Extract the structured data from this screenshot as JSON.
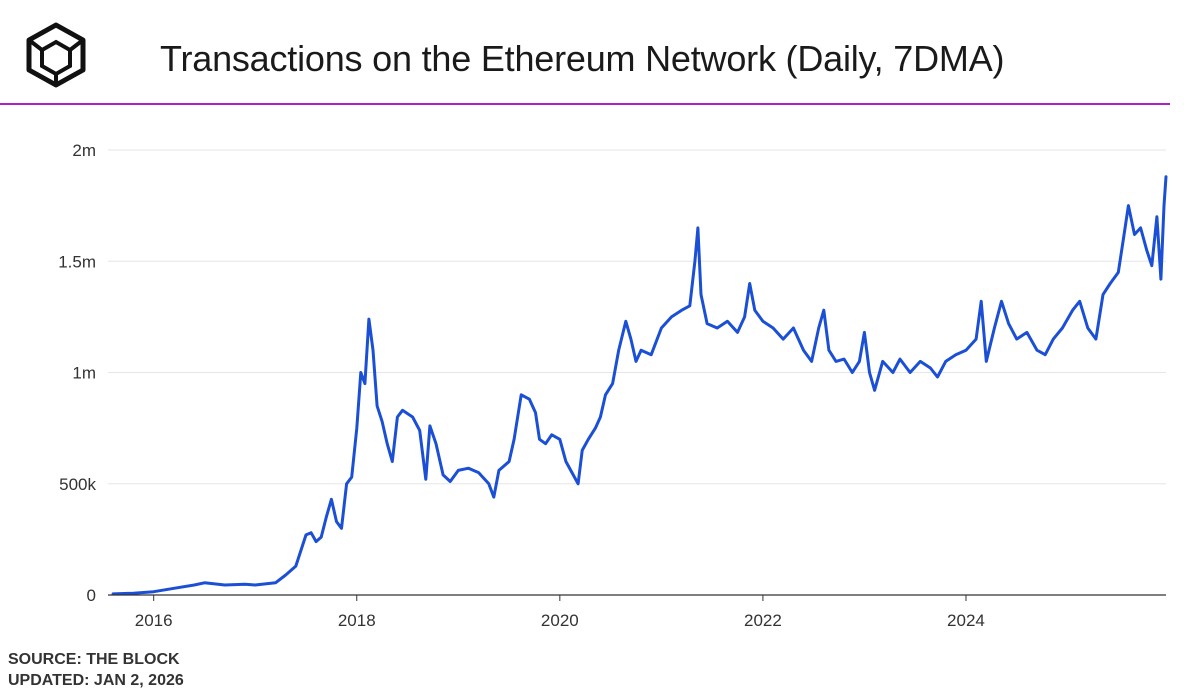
{
  "colors": {
    "line": "#1a4fd6",
    "accent": "#b01fc6",
    "grid": "#e6e6e6",
    "axis": "#333333"
  },
  "logo_icon": "the-block-cube-icon",
  "footer": {
    "source": "SOURCE: THE BLOCK",
    "updated": "UPDATED: JAN 2, 2026"
  },
  "chart_data": {
    "type": "line",
    "title": "Transactions on the Ethereum Network (Daily, 7DMA)",
    "xlabel": "",
    "ylabel": "",
    "xlim": [
      2015.55,
      2025.97
    ],
    "ylim": [
      0,
      2000000
    ],
    "x_ticks": [
      2016,
      2018,
      2020,
      2022,
      2024
    ],
    "x_tick_labels": [
      "2016",
      "2018",
      "2020",
      "2022",
      "2024"
    ],
    "y_ticks": [
      0,
      500000,
      1000000,
      1500000,
      2000000
    ],
    "y_tick_labels": [
      "0",
      "500k",
      "1m",
      "1.5m",
      "2m"
    ],
    "grid": true,
    "series": [
      {
        "name": "Transactions (7DMA)",
        "points": [
          [
            2015.6,
            5000
          ],
          [
            2015.8,
            8000
          ],
          [
            2016.0,
            15000
          ],
          [
            2016.2,
            30000
          ],
          [
            2016.4,
            45000
          ],
          [
            2016.5,
            55000
          ],
          [
            2016.7,
            45000
          ],
          [
            2016.9,
            48000
          ],
          [
            2017.0,
            45000
          ],
          [
            2017.1,
            50000
          ],
          [
            2017.2,
            55000
          ],
          [
            2017.3,
            90000
          ],
          [
            2017.4,
            130000
          ],
          [
            2017.45,
            200000
          ],
          [
            2017.5,
            270000
          ],
          [
            2017.55,
            280000
          ],
          [
            2017.6,
            240000
          ],
          [
            2017.65,
            260000
          ],
          [
            2017.7,
            350000
          ],
          [
            2017.75,
            430000
          ],
          [
            2017.8,
            330000
          ],
          [
            2017.85,
            300000
          ],
          [
            2017.9,
            500000
          ],
          [
            2017.95,
            530000
          ],
          [
            2018.0,
            750000
          ],
          [
            2018.04,
            1000000
          ],
          [
            2018.08,
            950000
          ],
          [
            2018.12,
            1240000
          ],
          [
            2018.16,
            1100000
          ],
          [
            2018.2,
            850000
          ],
          [
            2018.25,
            780000
          ],
          [
            2018.3,
            680000
          ],
          [
            2018.35,
            600000
          ],
          [
            2018.4,
            800000
          ],
          [
            2018.45,
            830000
          ],
          [
            2018.55,
            800000
          ],
          [
            2018.62,
            740000
          ],
          [
            2018.68,
            520000
          ],
          [
            2018.72,
            760000
          ],
          [
            2018.78,
            680000
          ],
          [
            2018.85,
            540000
          ],
          [
            2018.92,
            510000
          ],
          [
            2019.0,
            560000
          ],
          [
            2019.1,
            570000
          ],
          [
            2019.2,
            550000
          ],
          [
            2019.3,
            500000
          ],
          [
            2019.35,
            440000
          ],
          [
            2019.4,
            560000
          ],
          [
            2019.5,
            600000
          ],
          [
            2019.55,
            700000
          ],
          [
            2019.62,
            900000
          ],
          [
            2019.7,
            880000
          ],
          [
            2019.76,
            820000
          ],
          [
            2019.8,
            700000
          ],
          [
            2019.86,
            680000
          ],
          [
            2019.92,
            720000
          ],
          [
            2020.0,
            700000
          ],
          [
            2020.06,
            600000
          ],
          [
            2020.12,
            550000
          ],
          [
            2020.18,
            500000
          ],
          [
            2020.22,
            650000
          ],
          [
            2020.28,
            700000
          ],
          [
            2020.35,
            750000
          ],
          [
            2020.4,
            800000
          ],
          [
            2020.45,
            900000
          ],
          [
            2020.52,
            950000
          ],
          [
            2020.58,
            1100000
          ],
          [
            2020.65,
            1230000
          ],
          [
            2020.7,
            1150000
          ],
          [
            2020.75,
            1050000
          ],
          [
            2020.8,
            1100000
          ],
          [
            2020.9,
            1080000
          ],
          [
            2021.0,
            1200000
          ],
          [
            2021.1,
            1250000
          ],
          [
            2021.2,
            1280000
          ],
          [
            2021.28,
            1300000
          ],
          [
            2021.33,
            1500000
          ],
          [
            2021.36,
            1650000
          ],
          [
            2021.39,
            1350000
          ],
          [
            2021.45,
            1220000
          ],
          [
            2021.55,
            1200000
          ],
          [
            2021.65,
            1230000
          ],
          [
            2021.75,
            1180000
          ],
          [
            2021.82,
            1250000
          ],
          [
            2021.87,
            1400000
          ],
          [
            2021.92,
            1280000
          ],
          [
            2022.0,
            1230000
          ],
          [
            2022.1,
            1200000
          ],
          [
            2022.2,
            1150000
          ],
          [
            2022.3,
            1200000
          ],
          [
            2022.4,
            1100000
          ],
          [
            2022.48,
            1050000
          ],
          [
            2022.55,
            1200000
          ],
          [
            2022.6,
            1280000
          ],
          [
            2022.65,
            1100000
          ],
          [
            2022.72,
            1050000
          ],
          [
            2022.8,
            1060000
          ],
          [
            2022.88,
            1000000
          ],
          [
            2022.95,
            1050000
          ],
          [
            2023.0,
            1180000
          ],
          [
            2023.05,
            1000000
          ],
          [
            2023.1,
            920000
          ],
          [
            2023.18,
            1050000
          ],
          [
            2023.28,
            1000000
          ],
          [
            2023.35,
            1060000
          ],
          [
            2023.45,
            1000000
          ],
          [
            2023.55,
            1050000
          ],
          [
            2023.65,
            1020000
          ],
          [
            2023.72,
            980000
          ],
          [
            2023.8,
            1050000
          ],
          [
            2023.9,
            1080000
          ],
          [
            2024.0,
            1100000
          ],
          [
            2024.1,
            1150000
          ],
          [
            2024.15,
            1320000
          ],
          [
            2024.2,
            1050000
          ],
          [
            2024.28,
            1200000
          ],
          [
            2024.35,
            1320000
          ],
          [
            2024.42,
            1220000
          ],
          [
            2024.5,
            1150000
          ],
          [
            2024.6,
            1180000
          ],
          [
            2024.7,
            1100000
          ],
          [
            2024.78,
            1080000
          ],
          [
            2024.86,
            1150000
          ],
          [
            2024.95,
            1200000
          ],
          [
            2025.05,
            1280000
          ],
          [
            2025.12,
            1320000
          ],
          [
            2025.2,
            1200000
          ],
          [
            2025.28,
            1150000
          ],
          [
            2025.35,
            1350000
          ],
          [
            2025.42,
            1400000
          ],
          [
            2025.5,
            1450000
          ],
          [
            2025.55,
            1600000
          ],
          [
            2025.6,
            1750000
          ],
          [
            2025.66,
            1620000
          ],
          [
            2025.72,
            1650000
          ],
          [
            2025.78,
            1550000
          ],
          [
            2025.83,
            1480000
          ],
          [
            2025.88,
            1700000
          ],
          [
            2025.92,
            1420000
          ],
          [
            2025.95,
            1750000
          ],
          [
            2025.97,
            1880000
          ]
        ]
      }
    ]
  }
}
